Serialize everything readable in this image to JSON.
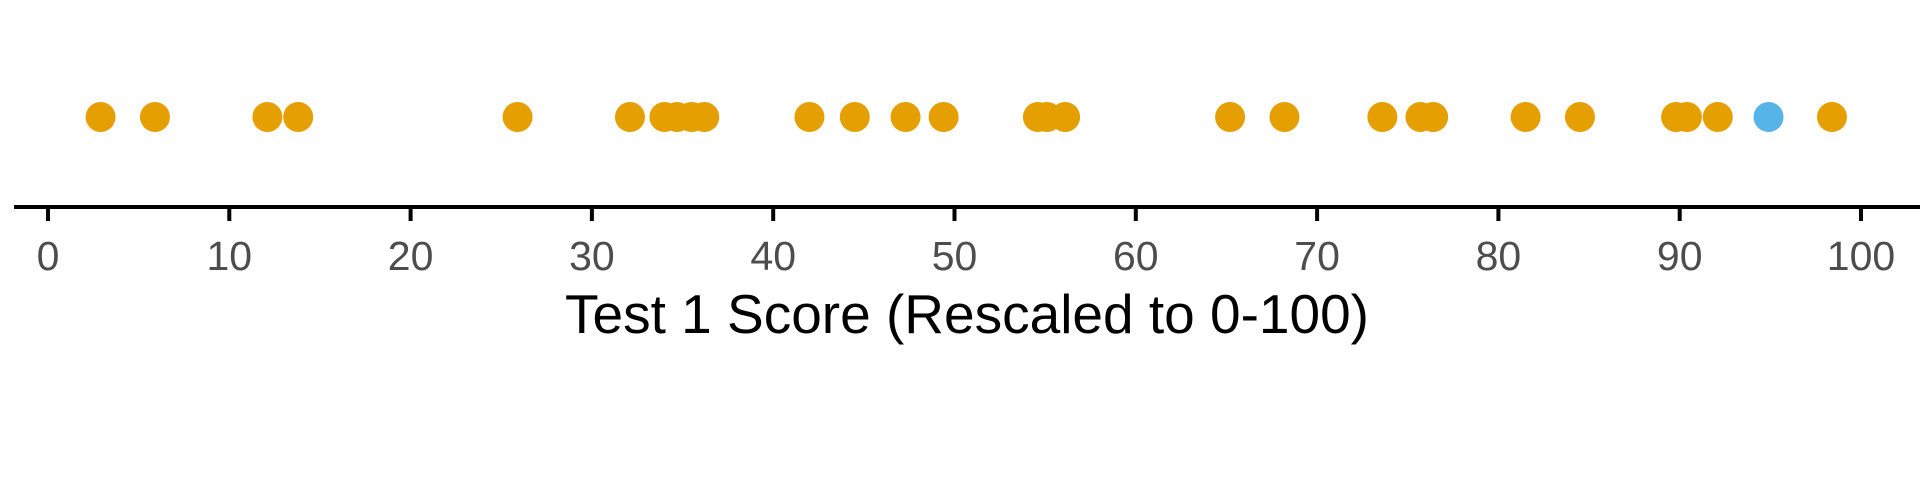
{
  "chart_data": {
    "type": "scatter",
    "title": "",
    "xlabel": "Test 1 Score (Rescaled to 0-100)",
    "ylabel": "",
    "xlim": [
      0,
      100
    ],
    "xticks": [
      0,
      10,
      20,
      30,
      40,
      50,
      60,
      70,
      80,
      90,
      100
    ],
    "tick_labels": [
      "0",
      "10",
      "20",
      "30",
      "40",
      "50",
      "60",
      "70",
      "80",
      "90",
      "100"
    ],
    "grid": false,
    "legend": "none",
    "series": [
      {
        "color": "#E69F00",
        "x": [
          2.9,
          5.9,
          12.1,
          13.8,
          25.9,
          32.1,
          34.0,
          34.7,
          35.5,
          36.2,
          42.0,
          44.5,
          47.3,
          49.4,
          54.6,
          55.1,
          56.1,
          65.2,
          68.2,
          73.6,
          75.7,
          76.4,
          81.5,
          84.5,
          89.8,
          90.4,
          92.1,
          98.4
        ]
      },
      {
        "color": "#56B4E9",
        "x": [
          94.9
        ]
      }
    ]
  }
}
